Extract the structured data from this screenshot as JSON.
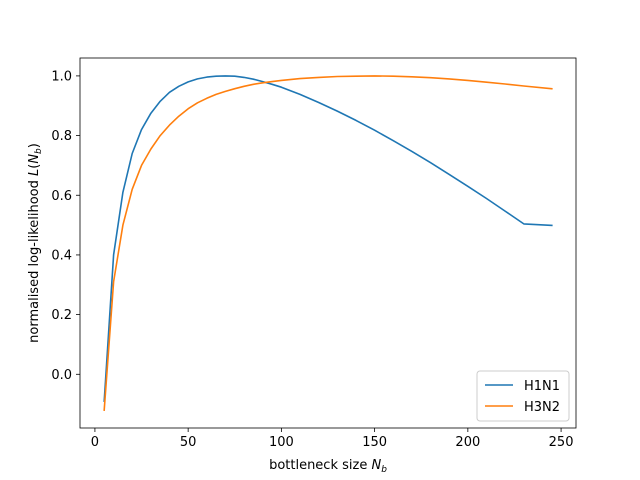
{
  "chart_data": {
    "type": "line",
    "title": "",
    "xlabel": "bottleneck size N_b",
    "xlabel_parts": {
      "main": "bottleneck size ",
      "var": "N",
      "sub": "b"
    },
    "ylabel": "normalised log-likelihood L(N_b)",
    "ylabel_parts": {
      "main": "normalised log-likelihood ",
      "var": "L",
      "open": "(",
      "var2": "N",
      "sub": "b",
      "close": ")"
    },
    "xlim": [
      -8,
      258
    ],
    "ylim": [
      -0.18,
      1.06
    ],
    "xticks": [
      0,
      50,
      100,
      150,
      200,
      250
    ],
    "xtick_labels": [
      "0",
      "50",
      "100",
      "150",
      "200",
      "250"
    ],
    "yticks": [
      0.0,
      0.2,
      0.4,
      0.6,
      0.8,
      1.0
    ],
    "ytick_labels": [
      "0.0",
      "0.2",
      "0.4",
      "0.6",
      "0.8",
      "1.0"
    ],
    "grid": false,
    "legend_position": "lower-right",
    "x": [
      5,
      10,
      15,
      20,
      25,
      30,
      35,
      40,
      45,
      50,
      55,
      60,
      65,
      70,
      75,
      80,
      85,
      90,
      95,
      100,
      110,
      120,
      130,
      140,
      150,
      160,
      170,
      180,
      190,
      200,
      210,
      220,
      230,
      245
    ],
    "series": [
      {
        "name": "H1N1",
        "color": "#1f77b4",
        "values": [
          -0.09,
          0.4,
          0.61,
          0.74,
          0.82,
          0.875,
          0.915,
          0.945,
          0.965,
          0.98,
          0.99,
          0.996,
          0.999,
          1.0,
          0.999,
          0.995,
          0.989,
          0.981,
          0.972,
          0.962,
          0.938,
          0.911,
          0.882,
          0.851,
          0.818,
          0.783,
          0.747,
          0.709,
          0.67,
          0.63,
          0.589,
          0.547,
          0.504,
          0.499
        ]
      },
      {
        "name": "H3N2",
        "color": "#ff7f0e",
        "values": [
          -0.12,
          0.31,
          0.5,
          0.62,
          0.7,
          0.755,
          0.8,
          0.835,
          0.865,
          0.89,
          0.91,
          0.925,
          0.938,
          0.948,
          0.957,
          0.965,
          0.972,
          0.977,
          0.981,
          0.985,
          0.991,
          0.995,
          0.998,
          0.999,
          1.0,
          0.999,
          0.997,
          0.994,
          0.99,
          0.985,
          0.979,
          0.973,
          0.966,
          0.957
        ]
      }
    ]
  }
}
